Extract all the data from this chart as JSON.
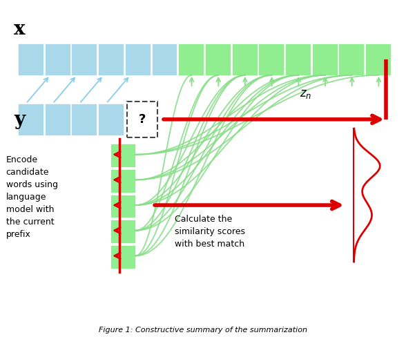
{
  "bg_color": "#ffffff",
  "light_blue": "#a8d8ea",
  "light_green": "#90ee90",
  "red": "#dd0000",
  "green_line": "#88dd88",
  "blue_arrow": "#87ceeb",
  "dashed_box_color": "#444444",
  "x_label": "x",
  "y_label": "y",
  "zn_label": "$z_n$",
  "encode_text": "Encode\ncandidate\nwords using\nlanguage\nmodel with\nthe current\nprefix",
  "calc_text": "Calculate the\nsimilarity scores\nwith best match",
  "caption": "Figure 1: Constructive summary of the summarization",
  "fig_width": 5.88,
  "fig_height": 4.88,
  "dpi": 100
}
